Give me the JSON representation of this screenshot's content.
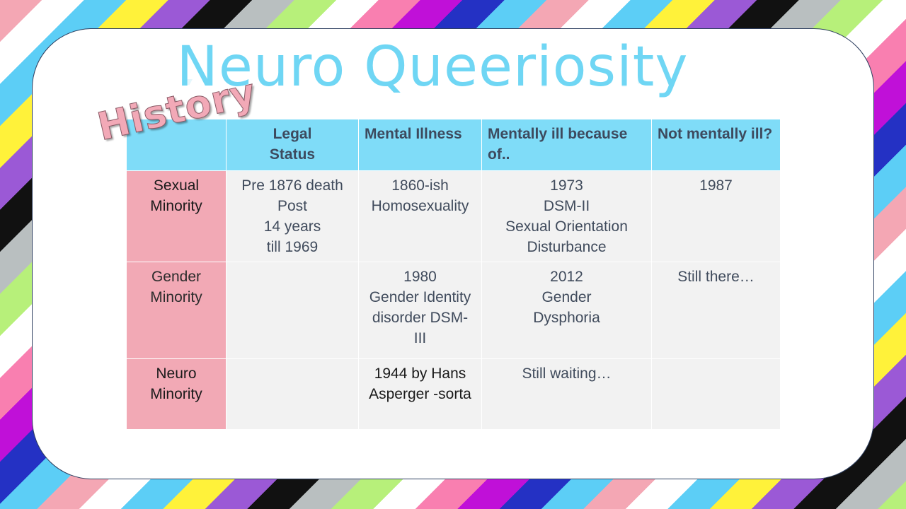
{
  "title": "Neuro Queeriosity",
  "wordart": "History",
  "table": {
    "headers": [
      "",
      "Legal Status",
      "Mental Illness",
      "Mentally ill because of..",
      "Not mentally ill?"
    ],
    "rows": [
      {
        "label": [
          "Sexual",
          "Minority"
        ],
        "legal_status": [
          "Pre 1876 death",
          "Post",
          "14 years",
          "till 1969"
        ],
        "mental_illness": [
          "1860-ish",
          "Homosexuality"
        ],
        "because_of": [
          "1973",
          "DSM-II",
          "Sexual Orientation",
          "Disturbance"
        ],
        "not_ill": [
          "1987"
        ]
      },
      {
        "label": [
          "Gender",
          "Minority"
        ],
        "legal_status": [],
        "mental_illness": [
          "1980",
          "Gender Identity",
          "disorder DSM-",
          "III"
        ],
        "because_of": [
          "2012",
          "Gender",
          "Dysphoria"
        ],
        "not_ill": [
          "Still there…"
        ]
      },
      {
        "label": [
          "Neuro",
          "Minority"
        ],
        "legal_status": [],
        "mental_illness": [
          "1944 by Hans",
          "Asperger -sorta"
        ],
        "because_of": [
          "Still waiting…"
        ],
        "not_ill": []
      }
    ]
  }
}
